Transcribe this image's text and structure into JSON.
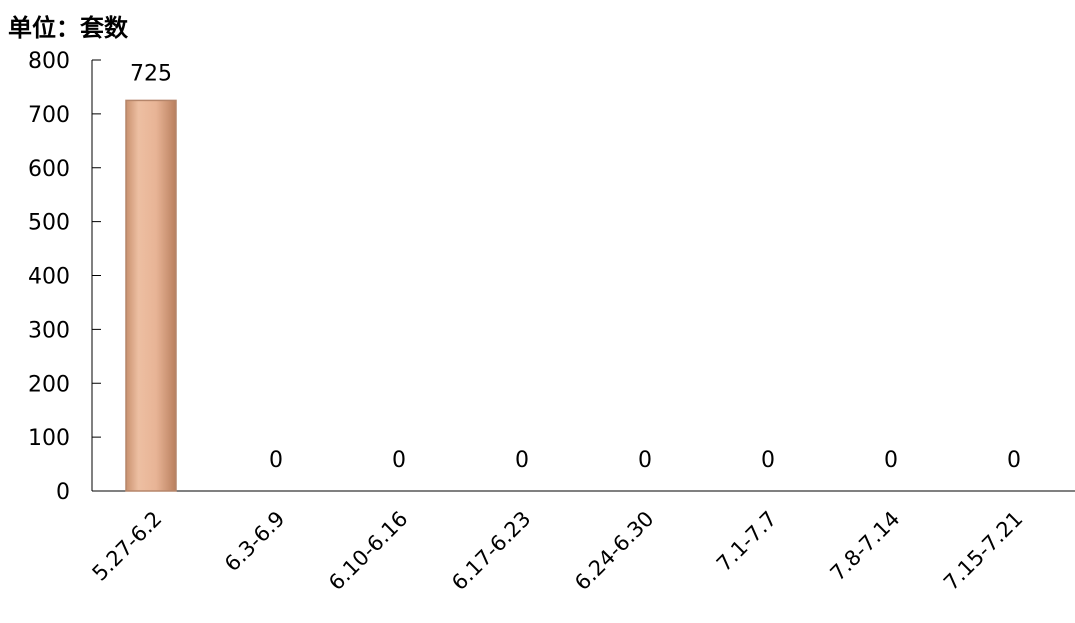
{
  "unit_label": "单位：套数",
  "chart_data": {
    "type": "bar",
    "title": "",
    "xlabel": "",
    "ylabel": "单位：套数",
    "categories": [
      "5.27-6.2",
      "6.3-6.9",
      "6.10-6.16",
      "6.17-6.23",
      "6.24-6.30",
      "7.1-7.7",
      "7.8-7.14",
      "7.15-7.21"
    ],
    "values": [
      725,
      0,
      0,
      0,
      0,
      0,
      0,
      0
    ],
    "ylim": [
      0,
      800
    ],
    "yticks": [
      0,
      100,
      200,
      300,
      400,
      500,
      600,
      700,
      800
    ],
    "grid": false,
    "legend": "none",
    "bar_color": "#E8B496",
    "bar_edge_color": "#B5856A"
  }
}
